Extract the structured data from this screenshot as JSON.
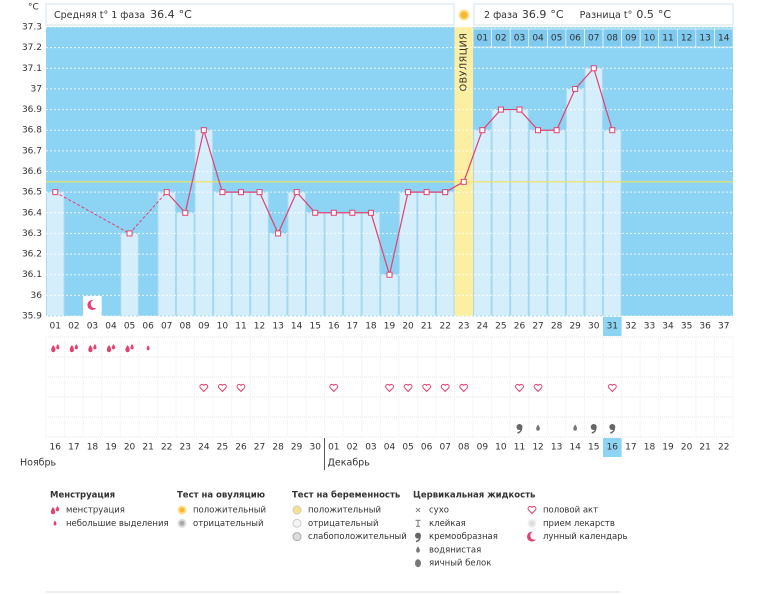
{
  "header": {
    "phase1_label": "Средняя t° 1 фаза",
    "phase1_value": 36.4,
    "phase2_label": "2 фаза",
    "phase2_value": 36.9,
    "diff_label": "Разница t°",
    "diff_value": 0.5,
    "unit": "°C"
  },
  "chart_data": {
    "type": "line",
    "ylabel": "°C",
    "categories": [
      "01",
      "02",
      "03",
      "04",
      "05",
      "06",
      "07",
      "08",
      "09",
      "10",
      "11",
      "12",
      "13",
      "14",
      "15",
      "16",
      "17",
      "18",
      "19",
      "20",
      "21",
      "22",
      "23",
      "24",
      "25",
      "26",
      "27",
      "28",
      "29",
      "30",
      "31",
      "32",
      "33",
      "34",
      "35",
      "36",
      "37"
    ],
    "values": [
      36.5,
      null,
      null,
      null,
      36.3,
      null,
      36.5,
      36.4,
      36.8,
      36.5,
      36.5,
      36.5,
      36.3,
      36.5,
      36.4,
      36.4,
      36.4,
      36.4,
      36.1,
      36.5,
      36.5,
      36.5,
      36.55,
      36.8,
      36.9,
      36.9,
      36.8,
      36.8,
      37.0,
      37.1,
      36.8,
      null,
      null,
      null,
      null,
      null,
      null
    ],
    "color": "#e3416f",
    "ylim": [
      35.9,
      37.3
    ],
    "yticks": [
      35.9,
      36,
      36.1,
      36.2,
      36.3,
      36.4,
      36.5,
      36.6,
      36.7,
      36.8,
      36.9,
      37,
      37.1,
      37.2,
      37.3
    ],
    "grid": true,
    "coverline": 36.55,
    "ovulation": {
      "label": "ОВУЛЯЦИЯ",
      "category": "23"
    },
    "current": "31",
    "moon_day": "03",
    "phase2_days": [
      null,
      null,
      null,
      null,
      null,
      null,
      null,
      null,
      null,
      null,
      null,
      null,
      null,
      null,
      null,
      null,
      null,
      null,
      null,
      null,
      null,
      null,
      null,
      "01",
      "02",
      "03",
      "04",
      "05",
      "06",
      "07",
      "08",
      "09",
      "10",
      "11",
      "12",
      "13",
      "14"
    ],
    "dates": [
      "16",
      "17",
      "18",
      "19",
      "20",
      "21",
      "22",
      "23",
      "24",
      "25",
      "26",
      "27",
      "28",
      "29",
      "30",
      "01",
      "02",
      "03",
      "04",
      "05",
      "06",
      "07",
      "08",
      "09",
      "10",
      "11",
      "12",
      "13",
      "14",
      "15",
      "16",
      "17",
      "18",
      "19",
      "20",
      "21",
      "22"
    ],
    "weekend": [
      true,
      true,
      false,
      false,
      false,
      false,
      false,
      true,
      true,
      false,
      false,
      false,
      false,
      false,
      true,
      true,
      false,
      false,
      false,
      false,
      false,
      true,
      true,
      false,
      false,
      false,
      false,
      false,
      true,
      true,
      false,
      false,
      false,
      false,
      false,
      true,
      true
    ],
    "months": [
      {
        "label": "Ноябрь",
        "start": "16"
      },
      {
        "label": "Декабрь",
        "start": "01"
      }
    ],
    "event_rows": [
      [
        {
          "day": "01",
          "mark": "менструация"
        },
        {
          "day": "02",
          "mark": "менструация"
        },
        {
          "day": "03",
          "mark": "менструация"
        },
        {
          "day": "04",
          "mark": "менструация"
        },
        {
          "day": "05",
          "mark": "менструация"
        },
        {
          "day": "06",
          "mark": "небольшие выделения"
        }
      ],
      [],
      [
        {
          "day": "09",
          "mark": "половой акт"
        },
        {
          "day": "10",
          "mark": "половой акт"
        },
        {
          "day": "11",
          "mark": "половой акт"
        },
        {
          "day": "16",
          "mark": "половой акт"
        },
        {
          "day": "19",
          "mark": "половой акт"
        },
        {
          "day": "20",
          "mark": "половой акт"
        },
        {
          "day": "21",
          "mark": "половой акт"
        },
        {
          "day": "22",
          "mark": "половой акт"
        },
        {
          "day": "23",
          "mark": "половой акт"
        },
        {
          "day": "26",
          "mark": "половой акт"
        },
        {
          "day": "27",
          "mark": "половой акт"
        },
        {
          "day": "31",
          "mark": "половой акт"
        }
      ],
      [],
      [
        {
          "day": "26",
          "mark": "кремообразная"
        },
        {
          "day": "27",
          "mark": "водянистая"
        },
        {
          "day": "29",
          "mark": "водянистая"
        },
        {
          "day": "30",
          "mark": "кремообразная"
        },
        {
          "day": "31",
          "mark": "кремообразная"
        }
      ]
    ]
  },
  "legend": [
    {
      "title": "Менструация",
      "items": [
        "менструация",
        "небольшие выделения"
      ]
    },
    {
      "title": "Тест на овуляцию",
      "items": [
        "положительный",
        "отрицательный"
      ]
    },
    {
      "title": "Тест на беременность",
      "items": [
        "положительный",
        "отрицательный",
        "слабоположительный"
      ]
    },
    {
      "title": "Цервикальная жидкость",
      "items": [
        "сухо",
        "клейкая",
        "кремообразная",
        "водянистая",
        "яичный белок"
      ]
    },
    {
      "items": [
        "половой акт",
        "прием лекарств",
        "лунный календарь"
      ]
    }
  ]
}
